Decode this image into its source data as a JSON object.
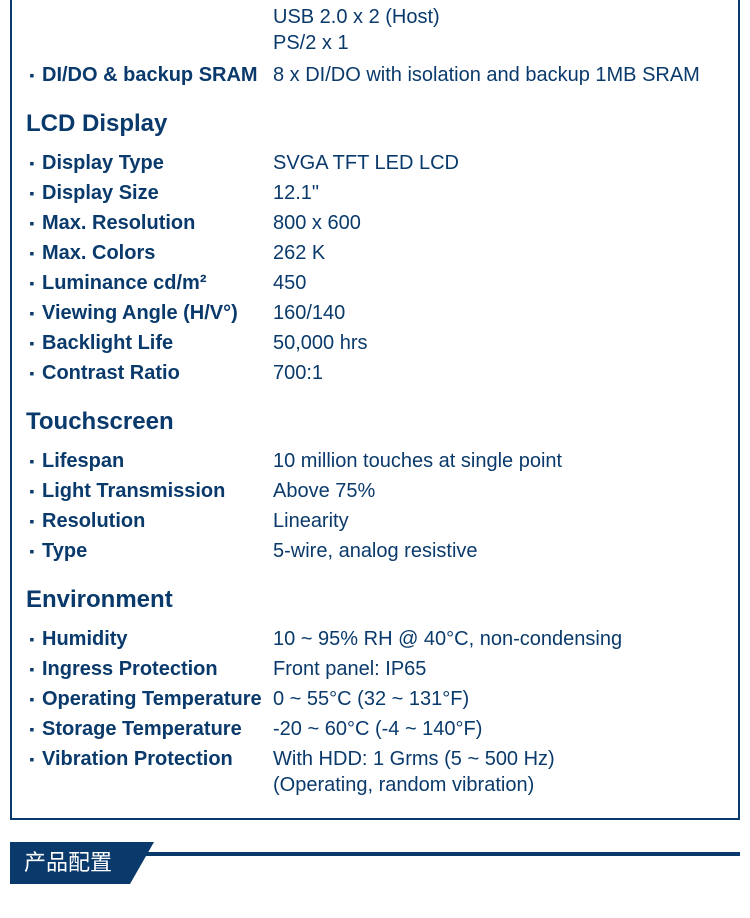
{
  "colors": {
    "accent": "#0a3a6b",
    "background": "#ffffff"
  },
  "top_extra": {
    "line1": "USB 2.0 x 2 (Host)",
    "line2": "PS/2 x 1"
  },
  "dido": {
    "label": "DI/DO & backup SRAM",
    "value": "8 x DI/DO with isolation and backup 1MB SRAM"
  },
  "lcd": {
    "title": "LCD Display",
    "rows": [
      {
        "label": "Display Type",
        "value": "SVGA TFT LED LCD"
      },
      {
        "label": "Display Size",
        "value": "12.1\""
      },
      {
        "label": "Max. Resolution",
        "value": "800 x 600"
      },
      {
        "label": "Max. Colors",
        "value": "262 K"
      },
      {
        "label": "Luminance cd/m²",
        "value": "450"
      },
      {
        "label": "Viewing Angle (H/V°)",
        "value": "160/140"
      },
      {
        "label": "Backlight Life",
        "value": "50,000 hrs"
      },
      {
        "label": "Contrast Ratio",
        "value": "700:1"
      }
    ]
  },
  "touch": {
    "title": "Touchscreen",
    "rows": [
      {
        "label": "Lifespan",
        "value": "10 million touches at single point"
      },
      {
        "label": "Light Transmission",
        "value": "Above 75%"
      },
      {
        "label": "Resolution",
        "value": "Linearity"
      },
      {
        "label": "Type",
        "value": "5-wire, analog resistive"
      }
    ]
  },
  "env": {
    "title": "Environment",
    "rows": [
      {
        "label": "Humidity",
        "value": "10 ~ 95% RH @ 40°C, non-condensing"
      },
      {
        "label": "Ingress Protection",
        "value": "Front panel: IP65"
      },
      {
        "label": "Operating Temperature",
        "value": "0 ~ 55°C (32 ~ 131°F)"
      },
      {
        "label": "Storage Temperature",
        "value": "-20 ~ 60°C (-4 ~ 140°F)"
      },
      {
        "label": "Vibration Protection",
        "value": "With HDD: 1 Grms (5 ~ 500 Hz)",
        "value2": "(Operating, random vibration)"
      }
    ]
  },
  "ribbon": {
    "label": "产品配置"
  }
}
